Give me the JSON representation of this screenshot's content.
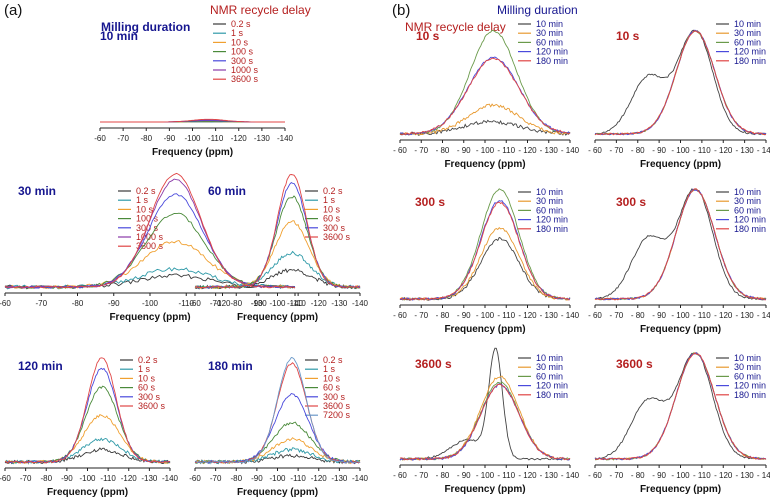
{
  "labels": {
    "panel_a": "(a)",
    "panel_b": "(b)",
    "milling_duration": "Milling duration",
    "nmr_recycle_delay": "NMR recycle delay",
    "xlabel": "Frequency (ppm)",
    "x_ticks": [
      "-60",
      "-70",
      "-80",
      "-90",
      "-100",
      "-110",
      "-120",
      "-130",
      "-140"
    ],
    "x_ticks_b": [
      "- 60",
      "- 70",
      "- 80",
      "- 90",
      "- 100",
      "- 110",
      "- 120",
      "- 130",
      "- 140"
    ]
  },
  "colors": {
    "title_blue": "#16168f",
    "title_red": "#b52020",
    "legend_red": "#b52020",
    "legend_blue": "#16168f",
    "s1": "#3a3a3a",
    "s2": "#2f9aa8",
    "s3": "#f0a030",
    "s4": "#4a8a3a",
    "s5": "#4a4adc",
    "s6": "#8a3aa8",
    "s7": "#e04545",
    "s8": "#6a98c8"
  },
  "chart_data": [
    {
      "type": "line",
      "panel": "(a)",
      "title": "10 min",
      "title_extra": "Milling duration",
      "xlabel": "Frequency (ppm)",
      "x_range": [
        -60,
        -140
      ],
      "legend_title": "NMR recycle delay",
      "series": [
        {
          "name": "0.2 s",
          "peak": 0.05
        },
        {
          "name": "1 s",
          "peak": 0.07
        },
        {
          "name": "10 s",
          "peak": 0.12
        },
        {
          "name": "100 s",
          "peak": 0.22
        },
        {
          "name": "300 s",
          "peak": 0.48
        },
        {
          "name": "1000 s",
          "peak": 0.72
        },
        {
          "name": "3600 s",
          "peak": 1.0
        }
      ]
    },
    {
      "type": "line",
      "panel": "(a)",
      "title": "30 min",
      "xlabel": "Frequency (ppm)",
      "x_range": [
        -60,
        -140
      ],
      "series": [
        {
          "name": "0.2 s",
          "peak": 0.1
        },
        {
          "name": "1 s",
          "peak": 0.16
        },
        {
          "name": "10 s",
          "peak": 0.4
        },
        {
          "name": "100 s",
          "peak": 0.65
        },
        {
          "name": "300 s",
          "peak": 0.82
        },
        {
          "name": "1000 s",
          "peak": 0.95
        },
        {
          "name": "3600 s",
          "peak": 1.0
        }
      ]
    },
    {
      "type": "line",
      "panel": "(a)",
      "title": "60 min",
      "xlabel": "Frequency (ppm)",
      "x_range": [
        -60,
        -140
      ],
      "series": [
        {
          "name": "0.2 s",
          "peak": 0.15
        },
        {
          "name": "1 s",
          "peak": 0.3
        },
        {
          "name": "10 s",
          "peak": 0.58
        },
        {
          "name": "60 s",
          "peak": 0.8
        },
        {
          "name": "300 s",
          "peak": 0.92
        },
        {
          "name": "3600 s",
          "peak": 1.0
        }
      ]
    },
    {
      "type": "line",
      "panel": "(a)",
      "title": "120 min",
      "xlabel": "Frequency (ppm)",
      "x_range": [
        -60,
        -140
      ],
      "series": [
        {
          "name": "0.2 s",
          "peak": 0.12
        },
        {
          "name": "1 s",
          "peak": 0.22
        },
        {
          "name": "10 s",
          "peak": 0.45
        },
        {
          "name": "60 s",
          "peak": 0.72
        },
        {
          "name": "300 s",
          "peak": 0.9
        },
        {
          "name": "3600 s",
          "peak": 1.0
        }
      ]
    },
    {
      "type": "line",
      "panel": "(a)",
      "title": "180 min",
      "xlabel": "Frequency (ppm)",
      "x_range": [
        -60,
        -140
      ],
      "series": [
        {
          "name": "0.2 s",
          "peak": 0.06
        },
        {
          "name": "1 s",
          "peak": 0.12
        },
        {
          "name": "10 s",
          "peak": 0.22
        },
        {
          "name": "60 s",
          "peak": 0.38
        },
        {
          "name": "300 s",
          "peak": 0.65
        },
        {
          "name": "3600 s",
          "peak": 0.95
        },
        {
          "name": "7200 s",
          "peak": 1.0
        }
      ]
    },
    {
      "type": "line",
      "panel": "(b)",
      "title": "10 s",
      "title_extra": "NMR recycle delay",
      "xlabel": "Frequency (ppm)",
      "x_range": [
        -60,
        -140
      ],
      "legend_title": "Milling duration",
      "series": [
        {
          "name": "10 min",
          "peak": 0.12,
          "center": -103,
          "width": 13
        },
        {
          "name": "30 min",
          "peak": 0.28,
          "center": -104,
          "width": 12
        },
        {
          "name": "60 min",
          "peak": 1.0,
          "center": -104,
          "width": 11
        },
        {
          "name": "120 min",
          "peak": 0.74,
          "center": -104,
          "width": 12
        },
        {
          "name": "180 min",
          "peak": 0.73,
          "center": -104,
          "width": 12
        }
      ]
    },
    {
      "type": "line",
      "panel": "(b)",
      "title": "10 s",
      "xlabel": "Frequency (ppm)",
      "x_range": [
        -60,
        -140
      ],
      "normalized": true,
      "series": [
        {
          "name": "10 min",
          "peak": 1.0
        },
        {
          "name": "30 min",
          "peak": 1.0
        },
        {
          "name": "60 min",
          "peak": 1.0
        },
        {
          "name": "120 min",
          "peak": 1.0
        },
        {
          "name": "180 min",
          "peak": 1.0
        }
      ]
    },
    {
      "type": "line",
      "panel": "(b)",
      "title": "300 s",
      "xlabel": "Frequency (ppm)",
      "x_range": [
        -60,
        -140
      ],
      "series": [
        {
          "name": "10 min",
          "peak": 0.55
        },
        {
          "name": "30 min",
          "peak": 0.65
        },
        {
          "name": "60 min",
          "peak": 1.0
        },
        {
          "name": "120 min",
          "peak": 0.9
        },
        {
          "name": "180 min",
          "peak": 0.88
        }
      ]
    },
    {
      "type": "line",
      "panel": "(b)",
      "title": "300 s",
      "xlabel": "Frequency (ppm)",
      "x_range": [
        -60,
        -140
      ],
      "normalized": true,
      "series": [
        {
          "name": "10 min",
          "peak": 1.0
        },
        {
          "name": "30 min",
          "peak": 1.0
        },
        {
          "name": "60 min",
          "peak": 1.0
        },
        {
          "name": "120 min",
          "peak": 1.0
        },
        {
          "name": "180 min",
          "peak": 1.0
        }
      ]
    },
    {
      "type": "line",
      "panel": "(b)",
      "title": "3600 s",
      "xlabel": "Frequency (ppm)",
      "x_range": [
        -60,
        -140
      ],
      "series": [
        {
          "name": "10 min",
          "peak": 1.0
        },
        {
          "name": "30 min",
          "peak": 0.78
        },
        {
          "name": "60 min",
          "peak": 0.72
        },
        {
          "name": "120 min",
          "peak": 0.7
        },
        {
          "name": "180 min",
          "peak": 0.7
        }
      ]
    },
    {
      "type": "line",
      "panel": "(b)",
      "title": "3600 s",
      "xlabel": "Frequency (ppm)",
      "x_range": [
        -60,
        -140
      ],
      "normalized": true,
      "series": [
        {
          "name": "10 min",
          "peak": 1.0
        },
        {
          "name": "30 min",
          "peak": 1.0
        },
        {
          "name": "60 min",
          "peak": 1.0
        },
        {
          "name": "120 min",
          "peak": 1.0
        },
        {
          "name": "180 min",
          "peak": 1.0
        }
      ]
    }
  ]
}
